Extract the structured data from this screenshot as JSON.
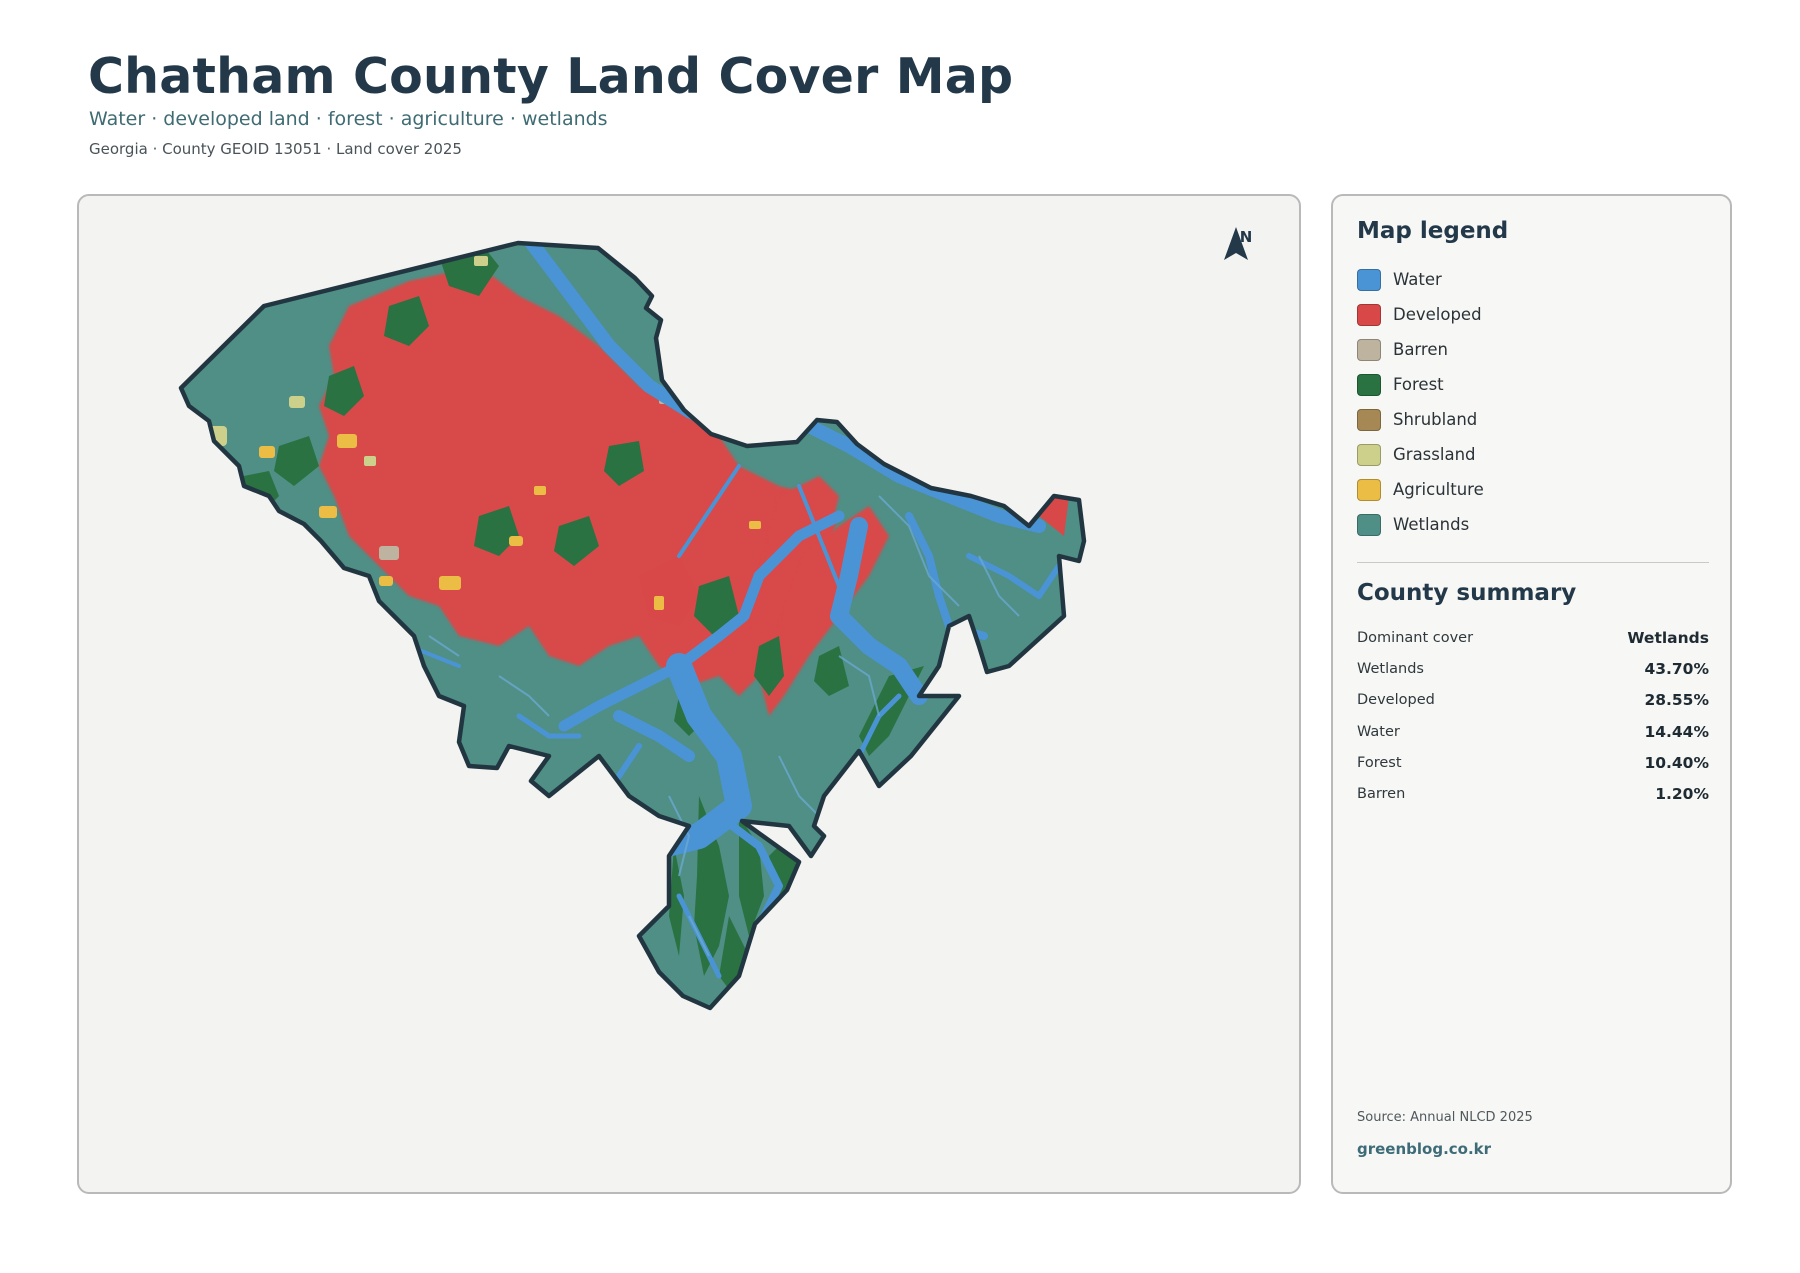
{
  "header": {
    "title": "Chatham County Land Cover Map",
    "subtitle": "Water · developed land · forest · agriculture · wetlands",
    "meta": "Georgia · County GEOID 13051 · Land cover 2025"
  },
  "map": {
    "north_label": "N",
    "north_icon": "north-arrow-icon",
    "outline_color": "#223642",
    "background_color": "#f3f3f1"
  },
  "legend": {
    "title": "Map legend",
    "items": [
      {
        "label": "Water",
        "color": "#4a94d6"
      },
      {
        "label": "Developed",
        "color": "#d84848"
      },
      {
        "label": "Barren",
        "color": "#bdb39f"
      },
      {
        "label": "Forest",
        "color": "#2a7242"
      },
      {
        "label": "Shrubland",
        "color": "#a58853"
      },
      {
        "label": "Grassland",
        "color": "#ccd08b"
      },
      {
        "label": "Agriculture",
        "color": "#ebbd45"
      },
      {
        "label": "Wetlands",
        "color": "#4f8f86"
      }
    ]
  },
  "summary": {
    "title": "County summary",
    "rows": [
      {
        "key": "Dominant cover",
        "value": "Wetlands"
      },
      {
        "key": "Wetlands",
        "value": "43.70%"
      },
      {
        "key": "Developed",
        "value": "28.55%"
      },
      {
        "key": "Water",
        "value": "14.44%"
      },
      {
        "key": "Forest",
        "value": "10.40%"
      },
      {
        "key": "Barren",
        "value": "1.20%"
      }
    ]
  },
  "footer": {
    "source": "Source: Annual NLCD 2025",
    "brand": "greenblog.co.kr"
  }
}
